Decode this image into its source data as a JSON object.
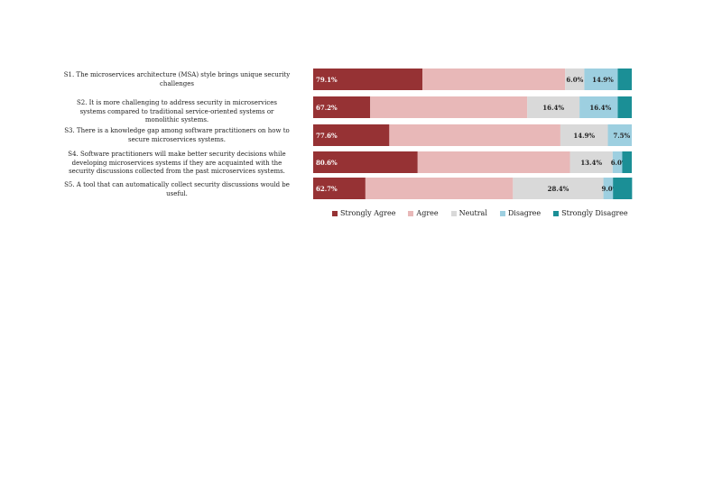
{
  "chart_data": {
    "type": "bar",
    "orientation": "horizontal",
    "stacked": true,
    "categories": [
      "S1. The microservices architecture (MSA) style brings unique security challenges",
      "S2. It is more challenging to address security in microservices systems compared to traditional service-oriented systems or monolithic systems.",
      "S3. There is a knowledge gap among software practitioners on how to secure microservices systems.",
      "S4. Software practitioners will make better security decisions while developing microservices systems if they are acquainted with the security discussions collected from the past microservices systems.",
      "S5. A tool that can automatically collect security discussions would be useful."
    ],
    "series": [
      {
        "name": "Strongly Agree",
        "color": "#963234",
        "values": [
          34.3,
          17.9,
          23.9,
          32.8,
          16.4
        ],
        "labels": [
          "79.1%",
          "67.2%",
          "77.6%",
          "80.6%",
          "62.7%"
        ]
      },
      {
        "name": "Agree",
        "color": "#e8b8b8",
        "values": [
          44.8,
          49.3,
          53.7,
          47.8,
          46.3
        ],
        "labels": [
          "",
          "",
          "",
          "",
          ""
        ]
      },
      {
        "name": "Neutral",
        "color": "#d9d9d9",
        "values": [
          6.0,
          16.4,
          14.9,
          13.4,
          28.4
        ],
        "labels": [
          "6.0%",
          "16.4%",
          "14.9%",
          "13.4%",
          "28.4%"
        ]
      },
      {
        "name": "Disagree",
        "color": "#9dcfe0",
        "values": [
          10.5,
          12.0,
          7.5,
          3.0,
          3.0
        ],
        "labels": [
          "14.9%",
          "16.4%",
          "7.5%",
          "6.0%",
          "9.0%"
        ]
      },
      {
        "name": "Strongly Disagree",
        "color": "#1b8f96",
        "values": [
          4.4,
          4.4,
          0.0,
          3.0,
          6.0
        ],
        "labels": [
          "",
          "",
          "",
          "",
          ""
        ]
      }
    ],
    "xlim": [
      0,
      100
    ],
    "legend_position": "bottom",
    "grid": false
  }
}
